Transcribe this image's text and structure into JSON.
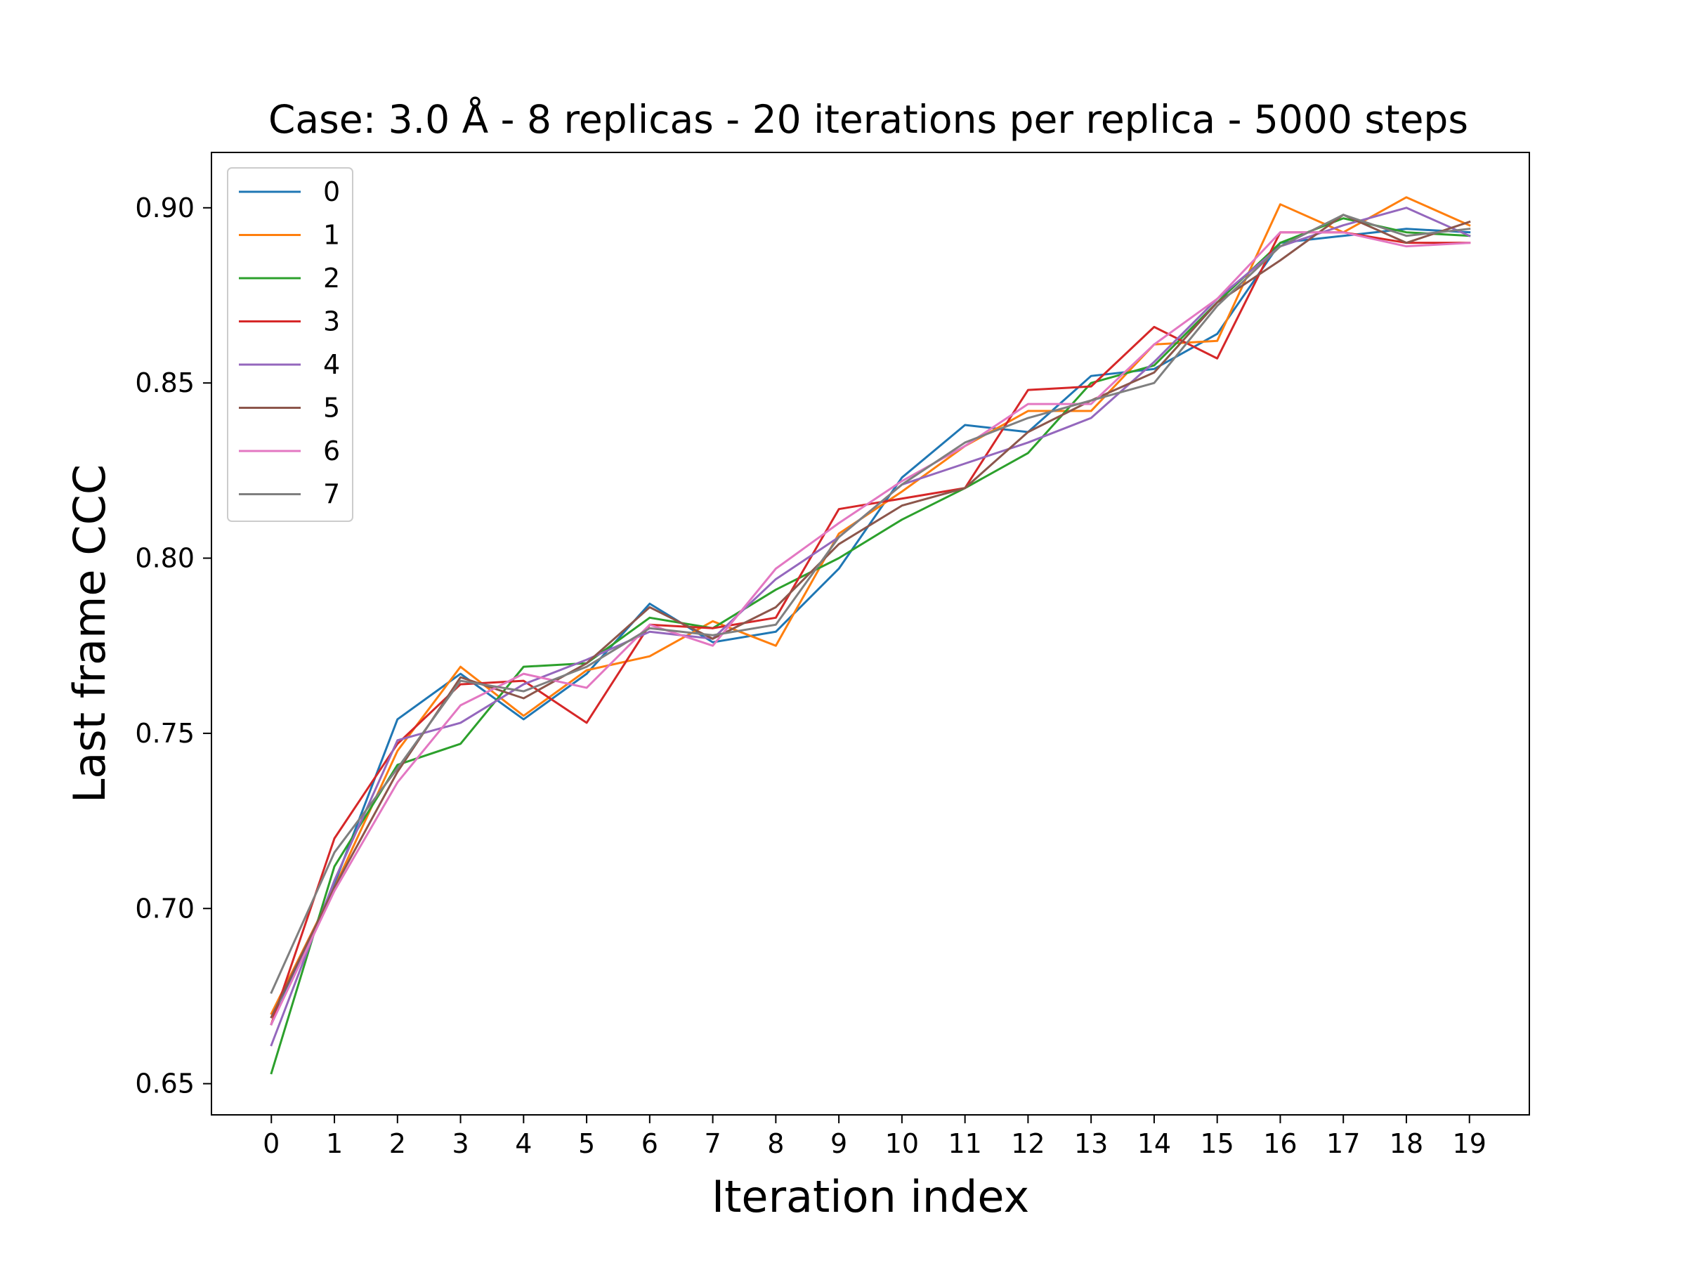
{
  "chart_data": {
    "type": "line",
    "title": "Case: 3.0 Å - 8 replicas - 20 iterations per replica - 5000 steps",
    "xlabel": "Iteration index",
    "ylabel": "Last frame CCC",
    "xlim": [
      -0.95,
      19.95
    ],
    "ylim": [
      0.6411,
      0.9158
    ],
    "x": [
      0,
      1,
      2,
      3,
      4,
      5,
      6,
      7,
      8,
      9,
      10,
      11,
      12,
      13,
      14,
      15,
      16,
      17,
      18,
      19
    ],
    "x_tick_labels": [
      "0",
      "1",
      "2",
      "3",
      "4",
      "5",
      "6",
      "7",
      "8",
      "9",
      "10",
      "11",
      "12",
      "13",
      "14",
      "15",
      "16",
      "17",
      "18",
      "19"
    ],
    "y_ticks": [
      0.65,
      0.7,
      0.75,
      0.8,
      0.85,
      0.9
    ],
    "y_tick_labels": [
      "0.65",
      "0.70",
      "0.75",
      "0.80",
      "0.85",
      "0.90"
    ],
    "grid": false,
    "legend_position": "upper-left",
    "series": [
      {
        "name": "0",
        "color": "#1f77b4",
        "values": [
          0.667,
          0.707,
          0.754,
          0.767,
          0.754,
          0.767,
          0.787,
          0.776,
          0.779,
          0.797,
          0.823,
          0.838,
          0.836,
          0.852,
          0.854,
          0.864,
          0.89,
          0.892,
          0.894,
          0.893
        ]
      },
      {
        "name": "1",
        "color": "#ff7f0e",
        "values": [
          0.67,
          0.706,
          0.745,
          0.769,
          0.755,
          0.768,
          0.772,
          0.782,
          0.775,
          0.807,
          0.819,
          0.832,
          0.842,
          0.842,
          0.861,
          0.862,
          0.901,
          0.893,
          0.903,
          0.895
        ]
      },
      {
        "name": "2",
        "color": "#2ca02c",
        "values": [
          0.653,
          0.712,
          0.741,
          0.747,
          0.769,
          0.77,
          0.783,
          0.78,
          0.791,
          0.8,
          0.811,
          0.82,
          0.83,
          0.85,
          0.855,
          0.873,
          0.89,
          0.897,
          0.893,
          0.892
        ]
      },
      {
        "name": "3",
        "color": "#d62728",
        "values": [
          0.667,
          0.72,
          0.747,
          0.764,
          0.765,
          0.753,
          0.781,
          0.78,
          0.783,
          0.814,
          0.817,
          0.82,
          0.848,
          0.849,
          0.866,
          0.857,
          0.893,
          0.893,
          0.89,
          0.89
        ]
      },
      {
        "name": "4",
        "color": "#9467bd",
        "values": [
          0.661,
          0.708,
          0.748,
          0.753,
          0.764,
          0.771,
          0.779,
          0.777,
          0.794,
          0.806,
          0.821,
          0.827,
          0.833,
          0.84,
          0.856,
          0.874,
          0.889,
          0.895,
          0.9,
          0.892
        ]
      },
      {
        "name": "5",
        "color": "#8c564b",
        "values": [
          0.669,
          0.706,
          0.739,
          0.766,
          0.76,
          0.77,
          0.786,
          0.777,
          0.786,
          0.804,
          0.815,
          0.82,
          0.836,
          0.845,
          0.853,
          0.873,
          0.885,
          0.898,
          0.89,
          0.896
        ]
      },
      {
        "name": "6",
        "color": "#e377c2",
        "values": [
          0.667,
          0.705,
          0.736,
          0.758,
          0.767,
          0.763,
          0.781,
          0.775,
          0.797,
          0.81,
          0.822,
          0.832,
          0.844,
          0.844,
          0.861,
          0.874,
          0.893,
          0.893,
          0.889,
          0.89
        ]
      },
      {
        "name": "7",
        "color": "#7f7f7f",
        "values": [
          0.676,
          0.716,
          0.74,
          0.765,
          0.762,
          0.769,
          0.78,
          0.778,
          0.781,
          0.806,
          0.821,
          0.833,
          0.84,
          0.845,
          0.85,
          0.872,
          0.889,
          0.898,
          0.892,
          0.894
        ]
      }
    ]
  }
}
